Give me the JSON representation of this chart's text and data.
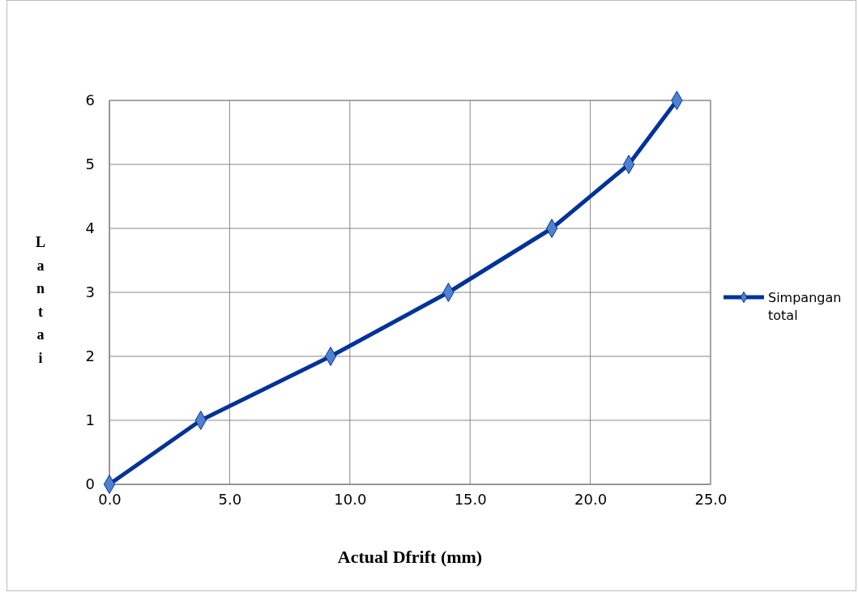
{
  "chart_data": {
    "type": "line",
    "xlabel": "Actual Dfrift (mm)",
    "ylabel": "Lantai",
    "x": [
      0,
      3.8,
      9.2,
      14.1,
      18.4,
      21.6,
      23.6
    ],
    "series": [
      {
        "name": "Simpangan total",
        "color": "#003399",
        "values": [
          0,
          1,
          2,
          3,
          4,
          5,
          6
        ]
      }
    ],
    "xlim": [
      0,
      25
    ],
    "xticks": [
      {
        "value": 0,
        "label": "0.0"
      },
      {
        "value": 5,
        "label": "5.0"
      },
      {
        "value": 10,
        "label": "10.0"
      },
      {
        "value": 15,
        "label": "15.0"
      },
      {
        "value": 20,
        "label": "20.0"
      },
      {
        "value": 25,
        "label": "25.0"
      }
    ],
    "ylim": [
      0,
      6
    ],
    "yticks": [
      0,
      1,
      2,
      3,
      4,
      5,
      6
    ],
    "grid": true,
    "legend": "right",
    "marker": "diamond",
    "line_style": "solid"
  }
}
